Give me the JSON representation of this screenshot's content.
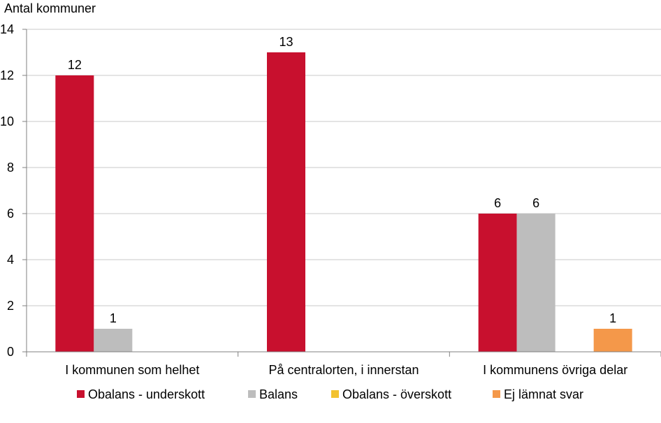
{
  "chart_data": {
    "type": "bar",
    "ylabel": "Antal kommuner",
    "xlabel": "",
    "ylim": [
      0,
      14
    ],
    "yticks": [
      0,
      2,
      4,
      6,
      8,
      10,
      12,
      14
    ],
    "grid": true,
    "legend_position": "bottom",
    "categories": [
      "I kommunen som helhet",
      "På centralorten, i innerstan",
      "I kommunens övriga delar"
    ],
    "series": [
      {
        "name": "Obalans - underskott",
        "color": "#c8102e",
        "values": [
          12,
          13,
          6
        ]
      },
      {
        "name": "Balans",
        "color": "#bdbdbd",
        "values": [
          1,
          0,
          6
        ]
      },
      {
        "name": "Obalans - överskott",
        "color": "#f2c230",
        "values": [
          0,
          0,
          0
        ]
      },
      {
        "name": "Ej lämnat svar",
        "color": "#f4984a",
        "values": [
          0,
          0,
          1
        ]
      }
    ]
  }
}
